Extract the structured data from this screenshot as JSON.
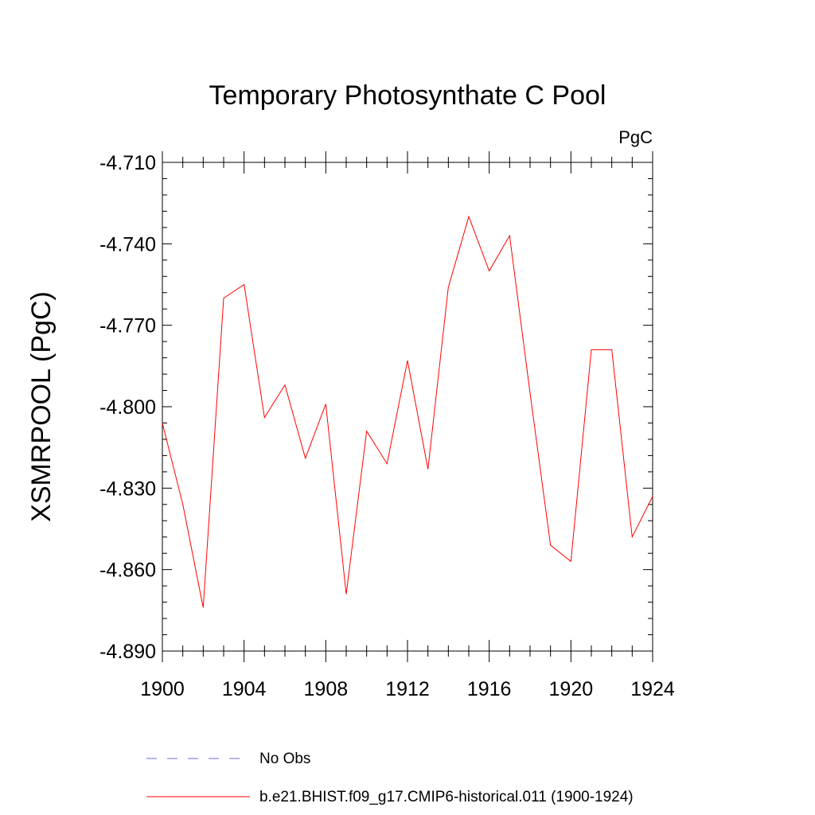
{
  "chart_data": {
    "type": "line",
    "title": "Temporary Photosynthate C Pool",
    "units_label": "PgC",
    "ylabel": "XSMRPOOL  (PgC)",
    "xlabel": "",
    "xlim": [
      1900,
      1924
    ],
    "ylim": [
      -4.89,
      -4.71
    ],
    "x_ticks": [
      1900,
      1904,
      1908,
      1912,
      1916,
      1920,
      1924
    ],
    "x_tick_labels": [
      "1900",
      "1904",
      "1908",
      "1912",
      "1916",
      "1920",
      "1924"
    ],
    "y_ticks": [
      -4.71,
      -4.74,
      -4.77,
      -4.8,
      -4.83,
      -4.86,
      -4.89
    ],
    "y_tick_labels": [
      "-4.710",
      "-4.740",
      "-4.770",
      "-4.800",
      "-4.830",
      "-4.860",
      "-4.890"
    ],
    "grid": false,
    "legend_position": "bottom",
    "legend": [
      {
        "label": "No Obs",
        "color": "#6b6bd6",
        "style": "dashed"
      },
      {
        "label": "b.e21.BHIST.f09_g17.CMIP6-historical.011 (1900-1924)",
        "color": "#ff0000",
        "style": "solid"
      }
    ],
    "series": [
      {
        "name": "b.e21.BHIST.f09_g17.CMIP6-historical.011 (1900-1924)",
        "color": "#ff0000",
        "x": [
          1900,
          1901,
          1902,
          1903,
          1904,
          1905,
          1906,
          1907,
          1908,
          1909,
          1910,
          1911,
          1912,
          1913,
          1914,
          1915,
          1916,
          1917,
          1918,
          1919,
          1920,
          1921,
          1922,
          1923,
          1924
        ],
        "y": [
          -4.806,
          -4.836,
          -4.874,
          -4.76,
          -4.755,
          -4.804,
          -4.792,
          -4.819,
          -4.799,
          -4.869,
          -4.809,
          -4.821,
          -4.783,
          -4.823,
          -4.756,
          -4.73,
          -4.75,
          -4.737,
          -4.795,
          -4.851,
          -4.857,
          -4.779,
          -4.779,
          -4.848,
          -4.833
        ]
      }
    ]
  }
}
